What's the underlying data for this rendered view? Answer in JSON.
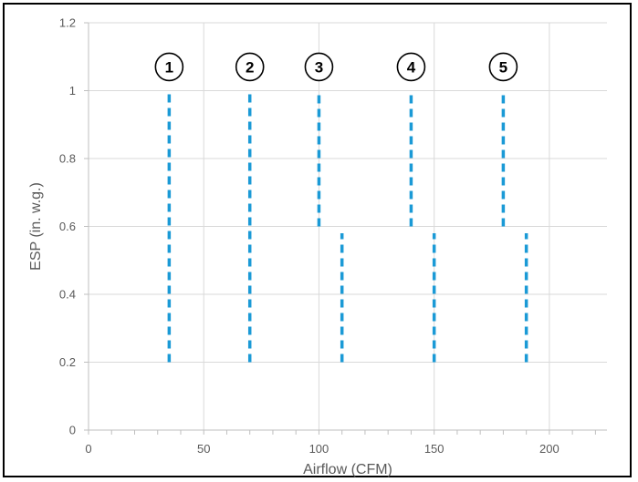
{
  "chart_data": {
    "type": "line",
    "title": "",
    "xlabel": "Airflow (CFM)",
    "ylabel": "ESP (in. w.g.)",
    "xlim": [
      0,
      225
    ],
    "ylim": [
      0,
      1.2
    ],
    "x_ticks": [
      0,
      50,
      100,
      150,
      200
    ],
    "x_tick_labels": [
      "0",
      "50",
      "100",
      "150",
      "200"
    ],
    "y_ticks": [
      0,
      0.2,
      0.4,
      0.6,
      0.8,
      1.0,
      1.2
    ],
    "y_tick_labels": [
      "0",
      "0.2",
      "0.4",
      "0.6",
      "0.8",
      "1",
      "1.2"
    ],
    "x_minor_step": 10,
    "grid": true,
    "line_color": "#1b9ad6",
    "line_style": "dashed",
    "series": [
      {
        "marker": "1",
        "segments": [
          {
            "x": 35,
            "y": [
              0.2,
              1.0
            ]
          }
        ]
      },
      {
        "marker": "2",
        "segments": [
          {
            "x": 70,
            "y": [
              0.2,
              1.0
            ]
          }
        ]
      },
      {
        "marker": "3",
        "segments": [
          {
            "x": 100,
            "y": [
              0.6,
              0.99
            ]
          },
          {
            "x": 110,
            "y": [
              0.2,
              0.58
            ]
          }
        ]
      },
      {
        "marker": "4",
        "segments": [
          {
            "x": 140,
            "y": [
              0.6,
              0.99
            ]
          },
          {
            "x": 150,
            "y": [
              0.2,
              0.58
            ]
          }
        ]
      },
      {
        "marker": "5",
        "segments": [
          {
            "x": 180,
            "y": [
              0.6,
              0.99
            ]
          },
          {
            "x": 190,
            "y": [
              0.2,
              0.58
            ]
          }
        ]
      }
    ],
    "markers": [
      {
        "label": "1",
        "x": 35,
        "y": 1.07
      },
      {
        "label": "2",
        "x": 70,
        "y": 1.07
      },
      {
        "label": "3",
        "x": 100,
        "y": 1.07
      },
      {
        "label": "4",
        "x": 140,
        "y": 1.07
      },
      {
        "label": "5",
        "x": 180,
        "y": 1.07
      }
    ]
  }
}
